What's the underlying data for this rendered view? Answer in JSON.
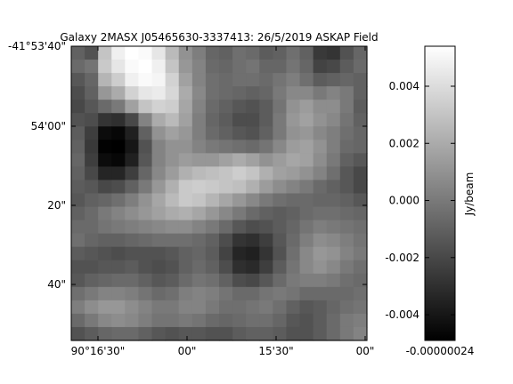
{
  "chart_data": {
    "type": "heatmap",
    "title": "Galaxy 2MASX J05465630-3337413: 26/5/2019 ASKAP Field",
    "colormap": "gray",
    "x_tick_labels": [
      "90°16'30\"",
      "00\"",
      "15'30\"",
      "00\""
    ],
    "y_tick_labels": [
      "-41°53'40\"",
      "54'00\"",
      "20\"",
      "40\""
    ],
    "colorbar": {
      "label": "Jy/beam",
      "range": [
        -0.0049,
        0.0054
      ],
      "ticks": [
        -0.004,
        -0.002,
        0.0,
        0.002,
        0.004
      ],
      "tick_labels": [
        "-0.004",
        "-0.002",
        "0.000",
        "0.002",
        "0.004"
      ],
      "bottom_label": "-0.00000024"
    },
    "grid_size": [
      22,
      22
    ],
    "values": [
      [
        -0.001,
        -0.0016,
        0.003,
        0.0048,
        0.0054,
        0.0052,
        0.0044,
        0.0026,
        0.001,
        0.0002,
        -0.0008,
        -0.001,
        -0.0004,
        -0.0006,
        -0.0012,
        -0.001,
        -0.0004,
        -0.001,
        -0.0026,
        -0.0028,
        -0.0016,
        -0.0008
      ],
      [
        -0.0006,
        -0.0002,
        0.0032,
        0.0044,
        0.0052,
        0.0054,
        0.0048,
        0.003,
        0.0012,
        0.0004,
        -0.0006,
        -0.0008,
        -0.0004,
        -0.0002,
        -0.0008,
        -0.0008,
        -0.0002,
        -0.0008,
        -0.0022,
        -0.002,
        -0.0012,
        -0.0006
      ],
      [
        -0.0014,
        -0.0008,
        0.0024,
        0.0034,
        0.0048,
        0.0052,
        0.005,
        0.0036,
        0.0016,
        0.0004,
        -0.0004,
        -0.0006,
        -0.0004,
        -0.0004,
        -0.0006,
        -0.0002,
        0.0002,
        -0.0004,
        -0.0012,
        -0.001,
        -0.0008,
        -0.001
      ],
      [
        -0.0018,
        -0.001,
        0.0012,
        0.002,
        0.0036,
        0.0044,
        0.0046,
        0.0038,
        0.002,
        0.0006,
        -0.0004,
        -0.0006,
        -0.0008,
        -0.001,
        -0.0008,
        0.0,
        0.0006,
        0.0006,
        0.0,
        0.0004,
        0.0,
        -0.001
      ],
      [
        -0.002,
        -0.0014,
        -0.0006,
        0.0,
        0.0016,
        0.003,
        0.0036,
        0.0034,
        0.0018,
        0.0004,
        -0.0006,
        -0.001,
        -0.0014,
        -0.0016,
        -0.0012,
        -0.0002,
        0.001,
        0.0014,
        0.0008,
        0.0008,
        0.0,
        -0.0012
      ],
      [
        -0.0016,
        -0.0018,
        -0.0028,
        -0.003,
        -0.002,
        0.0004,
        0.002,
        0.0026,
        0.0016,
        0.0002,
        -0.0008,
        -0.0012,
        -0.0018,
        -0.0018,
        -0.0012,
        0.0,
        0.0012,
        0.0016,
        0.001,
        0.0006,
        -0.0002,
        -0.001
      ],
      [
        -0.0012,
        -0.0024,
        -0.0044,
        -0.0046,
        -0.0036,
        -0.001,
        0.001,
        0.0016,
        0.0012,
        0.0002,
        -0.0006,
        -0.001,
        -0.0014,
        -0.0016,
        -0.001,
        0.0,
        0.001,
        0.0012,
        0.0006,
        0.0002,
        -0.0004,
        -0.0008
      ],
      [
        -0.001,
        -0.0026,
        -0.0048,
        -0.0049,
        -0.004,
        -0.0016,
        0.0004,
        0.001,
        0.001,
        0.0004,
        0.0,
        -0.0002,
        -0.0004,
        -0.0006,
        -0.0002,
        0.0006,
        0.0014,
        0.0016,
        0.001,
        0.0002,
        -0.0006,
        -0.0008
      ],
      [
        -0.0008,
        -0.0024,
        -0.0044,
        -0.0046,
        -0.0036,
        -0.0014,
        0.0004,
        0.001,
        0.0014,
        0.0012,
        0.0012,
        0.0016,
        0.002,
        0.0016,
        0.001,
        0.0014,
        0.0018,
        0.0016,
        0.0008,
        0.0,
        -0.001,
        -0.0014
      ],
      [
        -0.001,
        -0.002,
        -0.0034,
        -0.0034,
        -0.0024,
        -0.0008,
        0.0006,
        0.0014,
        0.0022,
        0.0026,
        0.0028,
        0.003,
        0.0034,
        0.003,
        0.0022,
        0.0016,
        0.0014,
        0.001,
        0.0004,
        -0.0004,
        -0.0014,
        -0.002
      ],
      [
        -0.0012,
        -0.0014,
        -0.002,
        -0.0018,
        -0.001,
        0.0,
        0.0012,
        0.0022,
        0.0032,
        0.0034,
        0.0032,
        0.003,
        0.0028,
        0.0022,
        0.0014,
        0.0008,
        0.0004,
        0.0,
        -0.0006,
        -0.001,
        -0.0014,
        -0.002
      ],
      [
        -0.0014,
        -0.001,
        -0.0008,
        -0.0004,
        0.0002,
        0.001,
        0.0018,
        0.0026,
        0.0032,
        0.003,
        0.0024,
        0.0018,
        0.0012,
        0.0006,
        0.0,
        -0.0004,
        -0.0006,
        -0.0006,
        -0.0008,
        -0.0008,
        -0.001,
        -0.0014
      ],
      [
        -0.001,
        -0.0006,
        0.0,
        0.0004,
        0.0008,
        0.0012,
        0.0016,
        0.002,
        0.0022,
        0.0018,
        0.0012,
        0.0006,
        0.0,
        -0.0006,
        -0.001,
        -0.0012,
        -0.001,
        -0.0006,
        -0.0004,
        -0.0004,
        -0.0006,
        -0.0008
      ],
      [
        -0.0006,
        -0.0006,
        -0.0002,
        0.0,
        0.0002,
        0.0004,
        0.0006,
        0.0008,
        0.0008,
        0.0004,
        0.0,
        -0.0006,
        -0.0014,
        -0.0018,
        -0.0016,
        -0.0012,
        -0.0008,
        -0.0002,
        0.0002,
        0.0,
        -0.0002,
        -0.0004
      ],
      [
        -0.0004,
        -0.0008,
        -0.001,
        -0.001,
        -0.0008,
        -0.0006,
        -0.0004,
        -0.0004,
        -0.0004,
        -0.0006,
        -0.001,
        -0.0018,
        -0.0028,
        -0.003,
        -0.0024,
        -0.0014,
        -0.0006,
        0.0002,
        0.0008,
        0.0006,
        0.0002,
        -0.0002
      ],
      [
        -0.0012,
        -0.0014,
        -0.0016,
        -0.0018,
        -0.0016,
        -0.0016,
        -0.0016,
        -0.0014,
        -0.001,
        -0.0008,
        -0.0012,
        -0.0022,
        -0.0034,
        -0.0036,
        -0.0028,
        -0.0016,
        -0.0004,
        0.0006,
        0.0012,
        0.001,
        0.0004,
        0.0
      ],
      [
        -0.0016,
        -0.0016,
        -0.0014,
        -0.0014,
        -0.0012,
        -0.0016,
        -0.0018,
        -0.0016,
        -0.001,
        -0.0006,
        -0.001,
        -0.0018,
        -0.003,
        -0.0032,
        -0.0024,
        -0.0012,
        -0.0002,
        0.0006,
        0.001,
        0.0006,
        0.0,
        -0.0004
      ],
      [
        -0.0014,
        -0.001,
        -0.0008,
        -0.0006,
        -0.0006,
        -0.001,
        -0.0014,
        -0.0012,
        -0.0006,
        -0.0002,
        -0.0004,
        -0.001,
        -0.0018,
        -0.002,
        -0.0014,
        -0.0006,
        0.0,
        0.0002,
        0.0002,
        0.0,
        -0.0004,
        -0.0006
      ],
      [
        -0.0004,
        0.0,
        0.0004,
        0.0004,
        0.0002,
        -0.0002,
        -0.0006,
        -0.0004,
        0.0002,
        0.0004,
        0.0002,
        -0.0002,
        -0.0006,
        -0.0006,
        -0.0002,
        0.0,
        -0.0002,
        -0.0006,
        -0.0006,
        -0.0006,
        -0.0006,
        -0.0004
      ],
      [
        0.0002,
        0.0008,
        0.0012,
        0.0012,
        0.0008,
        0.0004,
        0.0,
        0.0,
        0.0004,
        0.0004,
        0.0,
        -0.0004,
        -0.0004,
        -0.0002,
        0.0,
        -0.0004,
        -0.001,
        -0.0014,
        -0.0012,
        -0.0008,
        -0.0004,
        -0.0002
      ],
      [
        -0.0006,
        0.0,
        0.0006,
        0.0008,
        0.0006,
        0.0002,
        -0.0002,
        -0.0002,
        0.0,
        -0.0002,
        -0.0006,
        -0.0008,
        -0.0006,
        -0.0004,
        -0.0004,
        -0.0008,
        -0.0014,
        -0.0016,
        -0.0012,
        -0.0006,
        0.0,
        0.0002
      ],
      [
        -0.0016,
        -0.0012,
        -0.0008,
        -0.0006,
        -0.0006,
        -0.001,
        -0.0014,
        -0.0016,
        -0.0014,
        -0.0014,
        -0.0016,
        -0.0016,
        -0.0012,
        -0.001,
        -0.001,
        -0.0012,
        -0.0016,
        -0.0016,
        -0.0012,
        -0.0006,
        0.0,
        0.0004
      ]
    ]
  }
}
